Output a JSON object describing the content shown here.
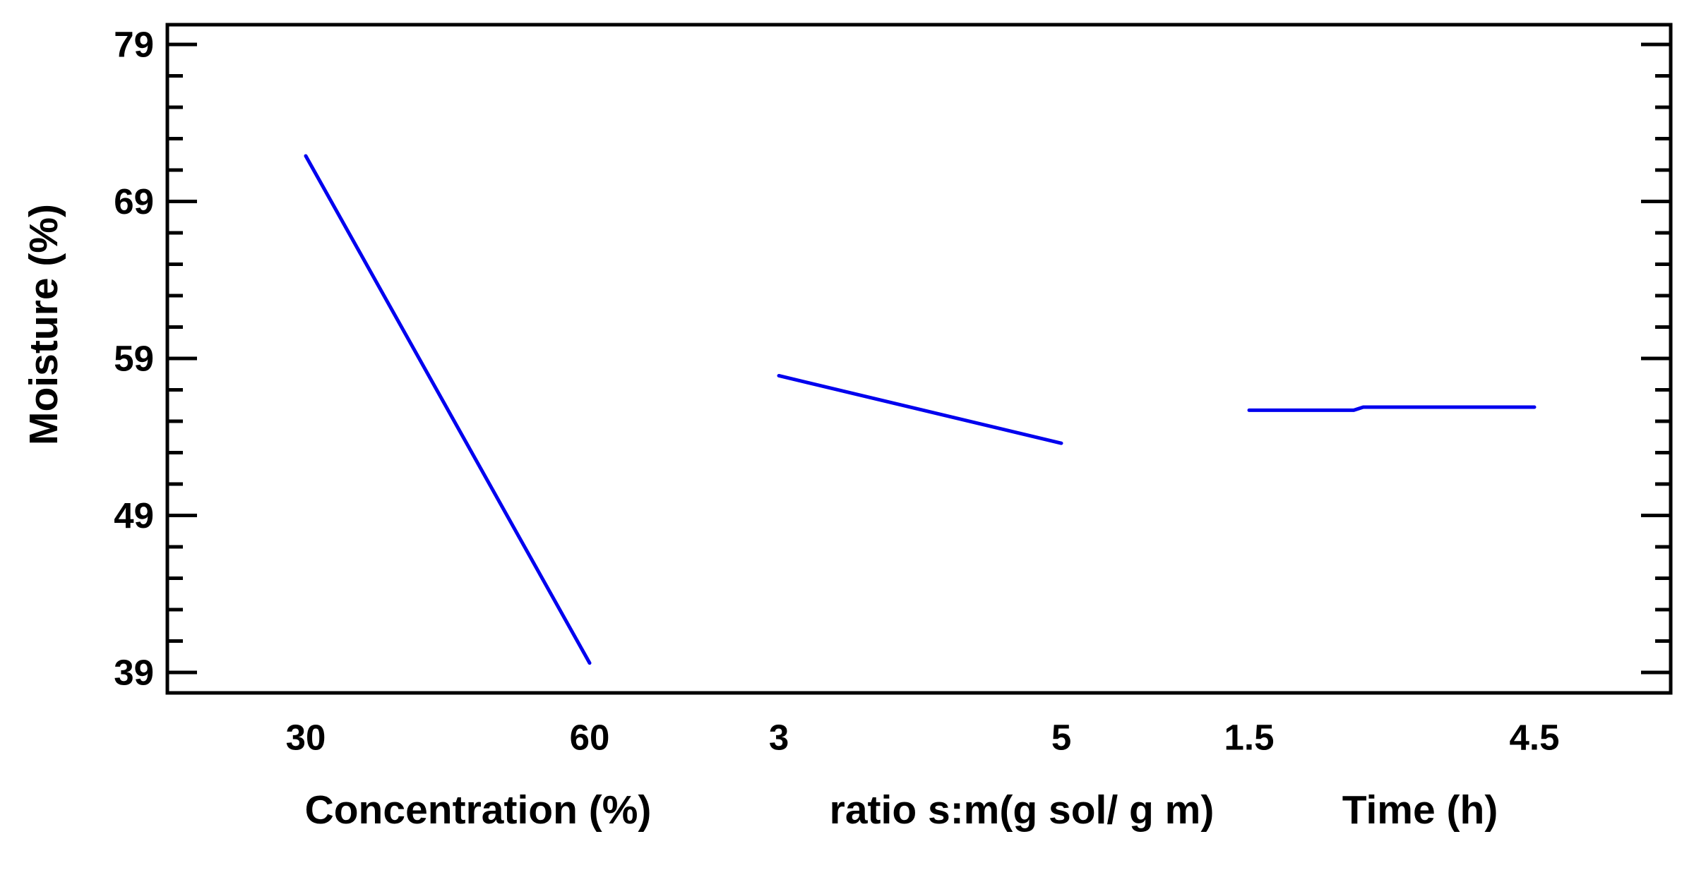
{
  "figure": {
    "background_color": "#ffffff",
    "axis_color": "#000000",
    "text_color": "#000000"
  },
  "chart_data": {
    "type": "line",
    "title": "",
    "ylabel": "Moisture (%)",
    "ylim": [
      39,
      79
    ],
    "grid": false,
    "line_color": "#0000ee",
    "y_axis": {
      "minor_tick_step": 2,
      "major_ticks": [
        {
          "value": 79,
          "label": "79"
        },
        {
          "value": 69,
          "label": "69"
        },
        {
          "value": 59,
          "label": "59"
        },
        {
          "value": 49,
          "label": "49"
        },
        {
          "value": 39,
          "label": "39"
        }
      ]
    },
    "panels": [
      {
        "xlabel": "Concentration (%)",
        "levels": [
          {
            "value": 30,
            "label": "30"
          },
          {
            "value": 60,
            "label": "60"
          }
        ],
        "series": [
          [
            30,
            71.9
          ],
          [
            60,
            39.6
          ]
        ]
      },
      {
        "xlabel": "ratio s:m(g sol/ g m)",
        "levels": [
          {
            "value": 3,
            "label": "3"
          },
          {
            "value": 5,
            "label": "5"
          }
        ],
        "series": [
          [
            3,
            57.9
          ],
          [
            5,
            53.6
          ]
        ]
      },
      {
        "xlabel": "Time (h)",
        "levels": [
          {
            "value": 1.5,
            "label": "1.5"
          },
          {
            "value": 4.5,
            "label": "4.5"
          }
        ],
        "series": [
          [
            1.5,
            55.7
          ],
          [
            2.6,
            55.7
          ],
          [
            2.7,
            55.9
          ],
          [
            4.5,
            55.9
          ]
        ]
      }
    ]
  }
}
